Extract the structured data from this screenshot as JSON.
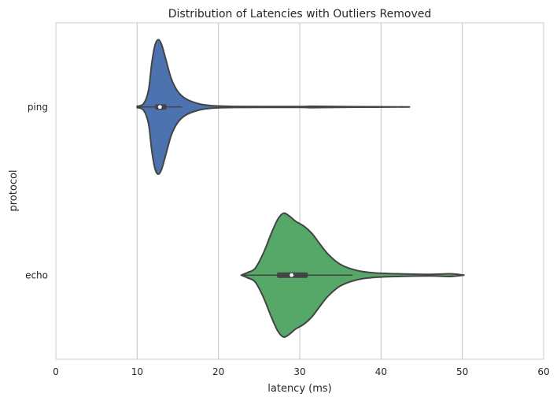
{
  "chart_data": {
    "type": "violin",
    "orientation": "horizontal",
    "title": "Distribution of Latencies with Outliers Removed",
    "xlabel": "latency (ms)",
    "ylabel": "protocol",
    "xlim": [
      0,
      60
    ],
    "x_ticks": [
      0,
      10,
      20,
      30,
      40,
      50,
      60
    ],
    "grid": "vertical",
    "categories": [
      "ping",
      "echo"
    ],
    "series": [
      {
        "name": "ping",
        "color": "#4c72b0",
        "min": 10.0,
        "q1": 12.2,
        "median": 12.8,
        "q3": 13.6,
        "max": 43.5,
        "whisker_low": 10.2,
        "whisker_high": 15.5,
        "density": [
          [
            10.0,
            0.01
          ],
          [
            10.8,
            0.05
          ],
          [
            11.4,
            0.25
          ],
          [
            11.8,
            0.65
          ],
          [
            12.2,
            0.92
          ],
          [
            12.6,
            1.0
          ],
          [
            13.0,
            0.93
          ],
          [
            13.5,
            0.72
          ],
          [
            14.2,
            0.42
          ],
          [
            15.0,
            0.23
          ],
          [
            16.0,
            0.12
          ],
          [
            17.5,
            0.05
          ],
          [
            19.0,
            0.02
          ],
          [
            22.0,
            0.008
          ],
          [
            30.0,
            0.006
          ],
          [
            31.5,
            0.01
          ],
          [
            36.0,
            0.005
          ],
          [
            43.5,
            0.0
          ]
        ]
      },
      {
        "name": "echo",
        "color": "#55a868",
        "min": 22.8,
        "q1": 27.2,
        "median": 29.0,
        "q3": 31.0,
        "max": 50.2,
        "whisker_low": 22.9,
        "whisker_high": 36.5,
        "density": [
          [
            22.8,
            0.0
          ],
          [
            23.6,
            0.04
          ],
          [
            24.5,
            0.1
          ],
          [
            25.5,
            0.32
          ],
          [
            26.5,
            0.62
          ],
          [
            27.3,
            0.83
          ],
          [
            28.0,
            0.92
          ],
          [
            28.7,
            0.88
          ],
          [
            29.5,
            0.8
          ],
          [
            30.5,
            0.73
          ],
          [
            31.5,
            0.62
          ],
          [
            32.5,
            0.46
          ],
          [
            33.5,
            0.31
          ],
          [
            35.0,
            0.16
          ],
          [
            37.0,
            0.07
          ],
          [
            39.0,
            0.035
          ],
          [
            42.0,
            0.02
          ],
          [
            46.0,
            0.012
          ],
          [
            48.5,
            0.02
          ],
          [
            50.2,
            0.0
          ]
        ]
      }
    ]
  }
}
